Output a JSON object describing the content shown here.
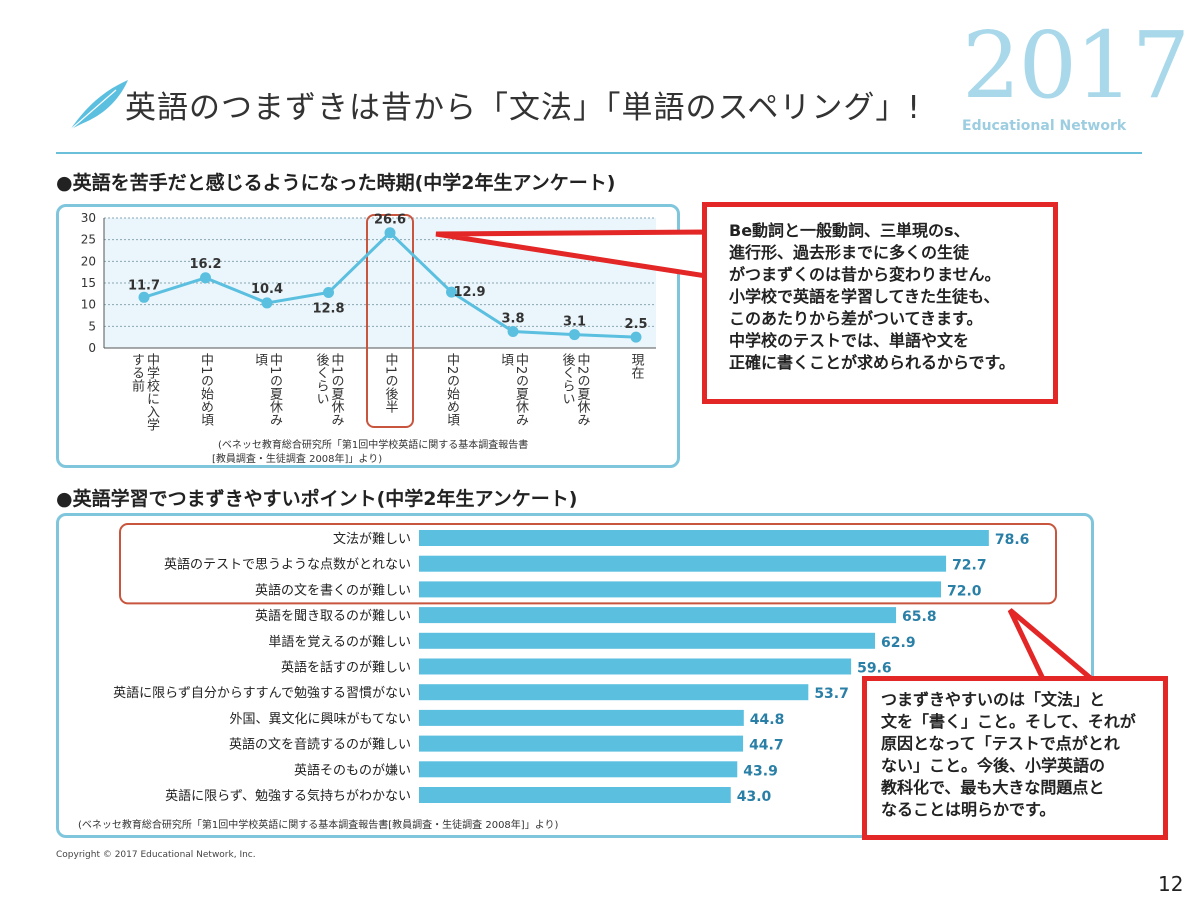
{
  "header": {
    "title": "英語のつまずきは昔から「文法」「単語のスペリング」!",
    "brand_year": "2017",
    "brand_name": "Educational Network"
  },
  "section1": {
    "heading": "●英語を苦手だと感じるようになった時期(中学2年生アンケート)",
    "source": [
      "(ベネッセ教育総合研究所「第1回中学校英語に関する基本調査報告書",
      "[教員調査・生徒調査 2008年]」より)"
    ]
  },
  "section2": {
    "heading": "●英語学習でつまずきやすいポイント(中学2年生アンケート)",
    "source": "(ベネッセ教育総合研究所「第1回中学校英語に関する基本調査報告書[教員調査・生徒調査 2008年]」より)"
  },
  "callout1": {
    "lines": [
      "Be動詞と一般動詞、三単現のs、",
      "進行形、過去形までに多くの生徒",
      "がつまずくのは昔から変わりません。",
      "小学校で英語を学習してきた生徒も、",
      "このあたりから差がついてきます。",
      "中学校のテストでは、単語や文を",
      "正確に書くことが求められるからです。"
    ]
  },
  "callout2": {
    "lines": [
      "つまずきやすいのは「文法」と",
      "文を「書く」こと。そして、それが",
      "原因となって「テストで点がとれ",
      "ない」こと。今後、小学英語の",
      "教科化で、最も大きな問題点と",
      "なることは明らかです。"
    ]
  },
  "footer": {
    "copyright": "Copyright © 2017 Educational Network, Inc.",
    "page_number": "12"
  },
  "colors": {
    "accent": "#5bbfe0",
    "highlight_box": "#c8553d",
    "callout_border": "#e32626",
    "plot_bg": "#eaf6fb"
  },
  "chart_data": [
    {
      "type": "line",
      "categories": [
        "中学校に入学する前",
        "中1の始め頃",
        "中1の夏休み頃",
        "中1の夏休み後くらい",
        "中1の後半",
        "中2の始め頃",
        "中2の夏休み頃",
        "中2の夏休み後くらい",
        "現在"
      ],
      "values": [
        11.7,
        16.2,
        10.4,
        12.8,
        26.6,
        12.9,
        3.8,
        3.1,
        2.5
      ],
      "ylim": [
        0,
        30
      ],
      "yticks": [
        0,
        5,
        10,
        15,
        20,
        25,
        30
      ],
      "highlight_category": "中1の後半",
      "grid": true
    },
    {
      "type": "bar",
      "orientation": "horizontal",
      "categories": [
        "文法が難しい",
        "英語のテストで思うような点数がとれない",
        "英語の文を書くのが難しい",
        "英語を聞き取るのが難しい",
        "単語を覚えるのが難しい",
        "英語を話すのが難しい",
        "英語に限らず自分からすすんで勉強する習慣がない",
        "外国、異文化に興味がもてない",
        "英語の文を音読するのが難しい",
        "英語そのものが嫌い",
        "英語に限らず、勉強する気持ちがわかない"
      ],
      "values": [
        78.6,
        72.7,
        72.0,
        65.8,
        62.9,
        59.6,
        53.7,
        44.8,
        44.7,
        43.9,
        43.0
      ],
      "value_labels": [
        "78.6",
        "72.7",
        "72.0",
        "65.8",
        "62.9",
        "59.6",
        "53.7",
        "44.8",
        "44.7",
        "43.9",
        "43.0"
      ],
      "highlight_top": 3
    }
  ]
}
